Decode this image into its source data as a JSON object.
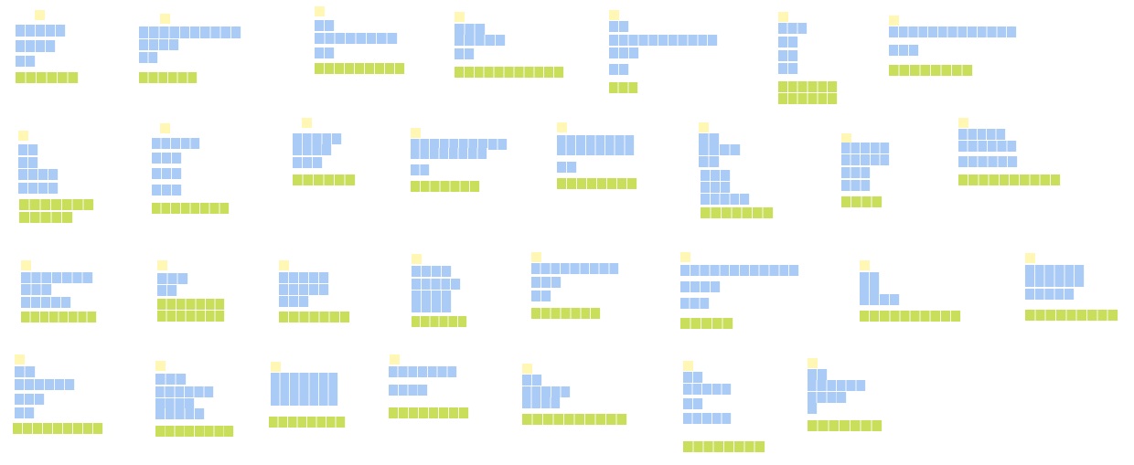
{
  "figure": {
    "description_kind": "grid of 29 abstract layout glyphs; no printed text",
    "colors": {
      "marker": "#fff7b3",
      "token": "#a9cbf5",
      "label": "#c9df5b",
      "background": "#ffffff"
    },
    "glyph_count": 29,
    "rows": 4
  }
}
